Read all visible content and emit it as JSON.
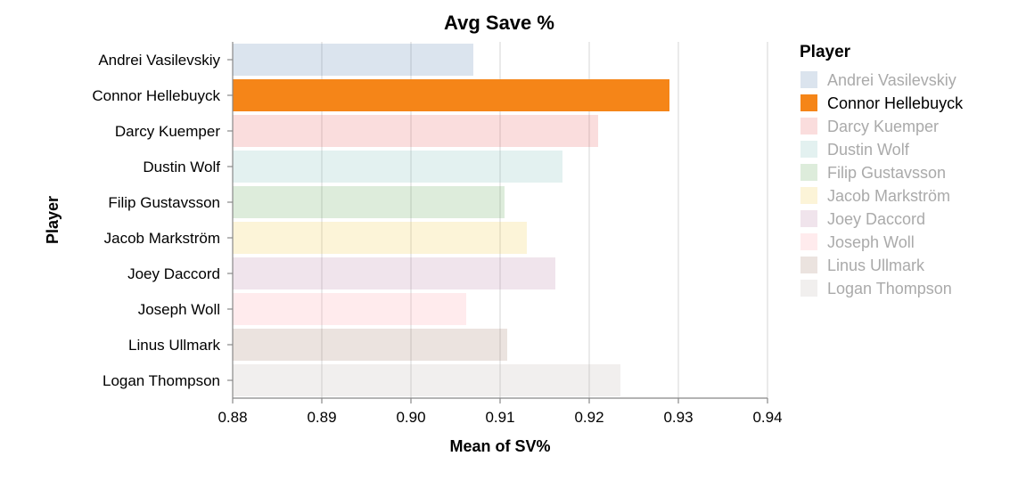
{
  "chart_data": {
    "type": "bar",
    "orientation": "horizontal",
    "title": "Avg Save %",
    "xlabel": "Mean of SV%",
    "ylabel": "Player",
    "xlim": [
      0.88,
      0.94
    ],
    "x_ticks": [
      "0.88",
      "0.89",
      "0.90",
      "0.91",
      "0.92",
      "0.93",
      "0.94"
    ],
    "grid": true,
    "legend": {
      "title": "Player",
      "position": "right"
    },
    "highlighted": "Connor Hellebuyck",
    "categories": [
      "Andrei Vasilevskiy",
      "Connor Hellebuyck",
      "Darcy Kuemper",
      "Dustin Wolf",
      "Filip Gustavsson",
      "Jacob Markström",
      "Joey Daccord",
      "Joseph Woll",
      "Linus Ullmark",
      "Logan Thompson"
    ],
    "values": [
      0.907,
      0.929,
      0.921,
      0.917,
      0.9105,
      0.913,
      0.9162,
      0.9062,
      0.9108,
      0.9235
    ],
    "colors": [
      "#4c78a8",
      "#f58518",
      "#e45756",
      "#72b7b2",
      "#54a24b",
      "#eeca3b",
      "#b279a2",
      "#ff9da6",
      "#9d755d",
      "#bab0ac"
    ],
    "faded_opacity": 0.2,
    "faded_label_color": "#aaaaaa"
  }
}
